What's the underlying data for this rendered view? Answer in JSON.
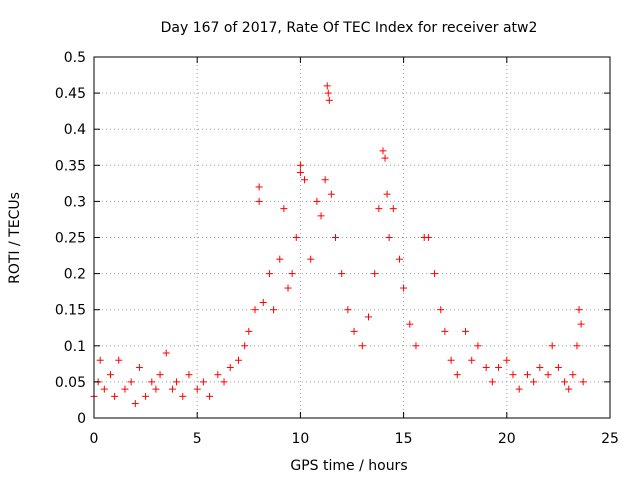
{
  "chart_data": {
    "type": "scatter",
    "title": "Day 167 of 2017, Rate Of TEC Index for receiver atw2",
    "xlabel": "GPS time / hours",
    "ylabel": "ROTI / TECUs",
    "xlim": [
      0,
      25
    ],
    "ylim": [
      0,
      0.5
    ],
    "xticks": [
      0,
      5,
      10,
      15,
      20,
      25
    ],
    "yticks": [
      0,
      0.05,
      0.1,
      0.15,
      0.2,
      0.25,
      0.3,
      0.35,
      0.4,
      0.45,
      0.5
    ],
    "xtick_labels": [
      "0",
      "5",
      "10",
      "15",
      "20",
      "25"
    ],
    "ytick_labels": [
      "0",
      "0.05",
      "0.1",
      "0.15",
      "0.2",
      "0.25",
      "0.3",
      "0.35",
      "0.4",
      "0.45",
      "0.5"
    ],
    "grid": true,
    "marker": "+",
    "color": "#ff0000",
    "series": [
      {
        "name": "atw2",
        "x": [
          0.0,
          0.2,
          0.3,
          0.5,
          0.8,
          1.0,
          1.2,
          1.5,
          1.8,
          2.0,
          2.2,
          2.5,
          2.8,
          3.0,
          3.2,
          3.5,
          3.8,
          4.0,
          4.3,
          4.6,
          5.0,
          5.3,
          5.6,
          6.0,
          6.3,
          6.6,
          7.0,
          7.3,
          7.5,
          7.8,
          8.0,
          8.0,
          8.2,
          8.5,
          8.7,
          9.0,
          9.2,
          9.4,
          9.6,
          9.8,
          10.0,
          10.0,
          10.2,
          10.5,
          10.8,
          11.0,
          11.2,
          11.3,
          11.35,
          11.4,
          11.5,
          11.7,
          12.0,
          12.3,
          12.6,
          13.0,
          13.3,
          13.6,
          13.8,
          14.0,
          14.1,
          14.2,
          14.3,
          14.5,
          14.8,
          15.0,
          15.3,
          15.6,
          16.0,
          16.2,
          16.5,
          16.8,
          17.0,
          17.3,
          17.6,
          18.0,
          18.3,
          18.6,
          19.0,
          19.3,
          19.6,
          20.0,
          20.3,
          20.6,
          21.0,
          21.3,
          21.6,
          22.0,
          22.2,
          22.5,
          22.8,
          23.0,
          23.2,
          23.4,
          23.5,
          23.6,
          23.7
        ],
        "y": [
          0.03,
          0.05,
          0.08,
          0.04,
          0.06,
          0.03,
          0.08,
          0.04,
          0.05,
          0.02,
          0.07,
          0.03,
          0.05,
          0.04,
          0.06,
          0.09,
          0.04,
          0.05,
          0.03,
          0.06,
          0.04,
          0.05,
          0.03,
          0.06,
          0.05,
          0.07,
          0.08,
          0.1,
          0.12,
          0.15,
          0.32,
          0.3,
          0.16,
          0.2,
          0.15,
          0.22,
          0.29,
          0.18,
          0.2,
          0.25,
          0.35,
          0.34,
          0.33,
          0.22,
          0.3,
          0.28,
          0.33,
          0.46,
          0.45,
          0.44,
          0.31,
          0.25,
          0.2,
          0.15,
          0.12,
          0.1,
          0.14,
          0.2,
          0.29,
          0.37,
          0.36,
          0.31,
          0.25,
          0.29,
          0.22,
          0.18,
          0.13,
          0.1,
          0.25,
          0.25,
          0.2,
          0.15,
          0.12,
          0.08,
          0.06,
          0.12,
          0.08,
          0.1,
          0.07,
          0.05,
          0.07,
          0.08,
          0.06,
          0.04,
          0.06,
          0.05,
          0.07,
          0.06,
          0.1,
          0.07,
          0.05,
          0.04,
          0.06,
          0.1,
          0.15,
          0.13,
          0.05
        ]
      }
    ]
  }
}
